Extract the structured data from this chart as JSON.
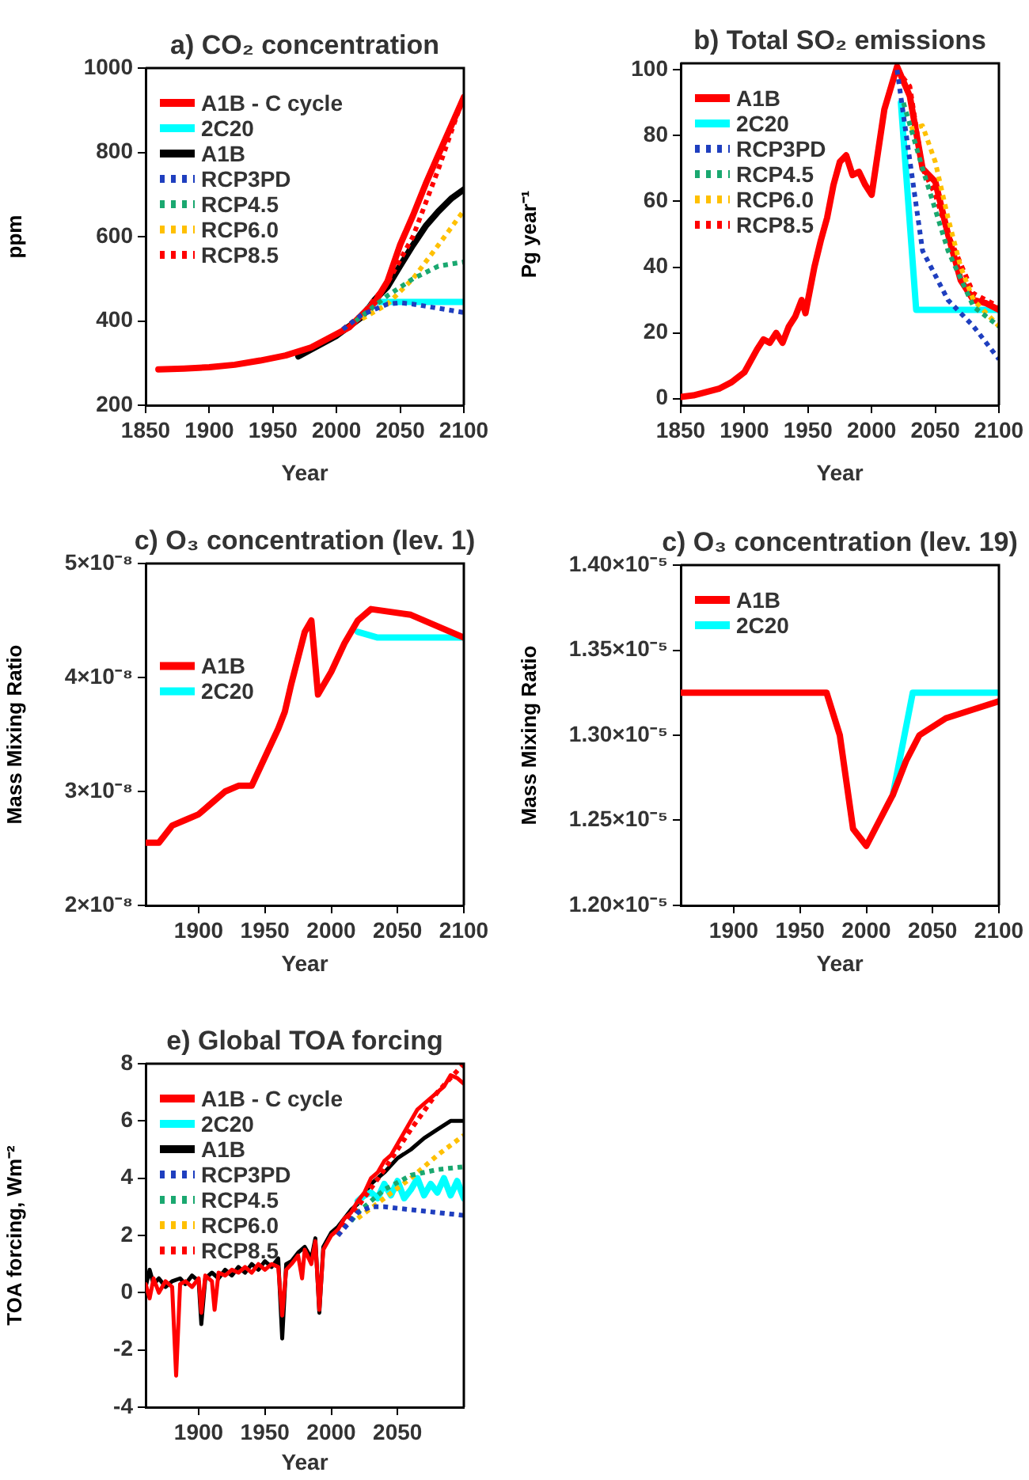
{
  "chart_data": [
    {
      "type": "line",
      "title": "a) CO₂ concentration",
      "xlabel": "Year",
      "ylabel": "ppm",
      "xlim": [
        1850,
        2100
      ],
      "xticks": [
        1850,
        1900,
        1950,
        2000,
        2050,
        2100
      ],
      "ylim": [
        200,
        1000
      ],
      "yticks": [
        200,
        400,
        600,
        800,
        1000
      ],
      "grid": false,
      "legend": "top left",
      "marker": "none",
      "series": [
        {
          "name": "A1B - C cycle",
          "color": "#ff0000",
          "line_style": "solid",
          "x": [
            1860,
            1880,
            1900,
            1920,
            1940,
            1960,
            1980,
            2000,
            2010,
            2020,
            2030,
            2040,
            2050,
            2060,
            2070,
            2080,
            2090,
            2100
          ],
          "values": [
            285,
            287,
            290,
            296,
            306,
            318,
            337,
            369,
            385,
            415,
            444,
            494,
            581,
            650,
            725,
            794,
            862,
            931
          ]
        },
        {
          "name": "2C20",
          "color": "#00ffff",
          "line_style": "solid",
          "x": [
            2020,
            2030,
            2040,
            2060,
            2080,
            2100
          ],
          "values": [
            415,
            445,
            445,
            445,
            445,
            445
          ]
        },
        {
          "name": "A1B",
          "color": "#000000",
          "line_style": "solid",
          "x": [
            1970,
            2000,
            2020,
            2030,
            2040,
            2050,
            2060,
            2070,
            2080,
            2090,
            2100
          ],
          "values": [
            316,
            365,
            410,
            450,
            481,
            531,
            580,
            625,
            660,
            690,
            712
          ]
        },
        {
          "name": "RCP3PD",
          "color": "#1f3fbf",
          "line_style": "dotted",
          "x": [
            2005,
            2020,
            2040,
            2050,
            2060,
            2080,
            2100
          ],
          "values": [
            380,
            415,
            440,
            443,
            440,
            430,
            420
          ]
        },
        {
          "name": "RCP4.5",
          "color": "#1aa870",
          "line_style": "dotted",
          "x": [
            2015,
            2020,
            2040,
            2060,
            2080,
            2100
          ],
          "values": [
            400,
            412,
            460,
            500,
            530,
            540
          ]
        },
        {
          "name": "RCP6.0",
          "color": "#ffc000",
          "line_style": "dotted",
          "x": [
            2020,
            2040,
            2060,
            2080,
            2100
          ],
          "values": [
            405,
            440,
            500,
            580,
            662
          ]
        },
        {
          "name": "RCP8.5",
          "color": "#ff0000",
          "line_style": "dotted",
          "x": [
            2005,
            2020,
            2040,
            2060,
            2080,
            2100
          ],
          "values": [
            380,
            415,
            490,
            600,
            760,
            935
          ]
        }
      ]
    },
    {
      "type": "line",
      "title": "b) Total SO₂ emissions",
      "xlabel": "Year",
      "ylabel": "Pg year⁻¹",
      "xlim": [
        1850,
        2100
      ],
      "xticks": [
        1850,
        1900,
        1950,
        2000,
        2050,
        2100
      ],
      "ylim": [
        -2,
        102
      ],
      "yticks": [
        0,
        20,
        40,
        60,
        80,
        100
      ],
      "grid": false,
      "legend": "top left",
      "marker": "none",
      "series": [
        {
          "name": "A1B",
          "color": "#ff0000",
          "line_style": "solid",
          "x": [
            1850,
            1860,
            1870,
            1880,
            1890,
            1900,
            1910,
            1915,
            1920,
            1925,
            1930,
            1935,
            1940,
            1945,
            1948,
            1955,
            1960,
            1965,
            1970,
            1975,
            1980,
            1985,
            1990,
            1995,
            2000,
            2005,
            2010,
            2020,
            2030,
            2040,
            2050,
            2060,
            2070,
            2080,
            2090,
            2100
          ],
          "values": [
            0.5,
            1,
            2,
            3,
            5,
            8,
            15,
            18,
            17,
            20,
            17,
            22,
            25,
            30,
            26,
            40,
            48,
            55,
            65,
            72,
            74,
            68,
            69,
            65,
            62,
            75,
            88,
            101,
            92,
            70,
            66,
            50,
            36,
            30,
            29,
            27
          ]
        },
        {
          "name": "2C20",
          "color": "#00ffff",
          "line_style": "solid",
          "x": [
            2023,
            2035,
            2100
          ],
          "values": [
            90,
            27,
            27
          ]
        },
        {
          "name": "RCP3PD",
          "color": "#1f3fbf",
          "line_style": "dotted",
          "x": [
            2020,
            2040,
            2060,
            2080,
            2100
          ],
          "values": [
            100,
            45,
            30,
            22,
            12
          ]
        },
        {
          "name": "RCP4.5",
          "color": "#1aa870",
          "line_style": "dotted",
          "x": [
            2025,
            2040,
            2060,
            2080,
            2100
          ],
          "values": [
            90,
            70,
            45,
            28,
            22
          ]
        },
        {
          "name": "RCP6.0",
          "color": "#ffc000",
          "line_style": "dotted",
          "x": [
            2030,
            2040,
            2050,
            2060,
            2070,
            2080,
            2100
          ],
          "values": [
            82,
            83,
            72,
            55,
            40,
            30,
            22
          ]
        },
        {
          "name": "RCP8.5",
          "color": "#ff0000",
          "line_style": "dotted",
          "x": [
            2020,
            2030,
            2040,
            2050,
            2060,
            2080,
            2100
          ],
          "values": [
            100,
            95,
            70,
            62,
            50,
            32,
            28
          ]
        }
      ]
    },
    {
      "type": "line",
      "title": "c) O₃ concentration (lev. 1)",
      "xlabel": "Year",
      "ylabel": "Mass Mixing Ratio",
      "xlim": [
        1860,
        2100
      ],
      "xticks": [
        1900,
        1950,
        2000,
        2050,
        2100
      ],
      "ylim": [
        2e-08,
        5e-08
      ],
      "yticks": [
        {
          "value": 2e-08,
          "label": "2×10⁻⁸"
        },
        {
          "value": 3e-08,
          "label": "3×10⁻⁸"
        },
        {
          "value": 4e-08,
          "label": "4×10⁻⁸"
        },
        {
          "value": 5e-08,
          "label": "5×10⁻⁸"
        }
      ],
      "grid": false,
      "legend": "left",
      "marker": "none",
      "series": [
        {
          "name": "A1B",
          "color": "#ff0000",
          "line_style": "solid",
          "x": [
            1860,
            1870,
            1880,
            1890,
            1900,
            1910,
            1920,
            1930,
            1940,
            1950,
            1960,
            1965,
            1970,
            1980,
            1985,
            1990,
            2000,
            2010,
            2020,
            2030,
            2060,
            2100
          ],
          "values": [
            2.55e-08,
            2.55e-08,
            2.7e-08,
            2.75e-08,
            2.8e-08,
            2.9e-08,
            3e-08,
            3.05e-08,
            3.05e-08,
            3.3e-08,
            3.55e-08,
            3.7e-08,
            3.95e-08,
            4.4e-08,
            4.5e-08,
            3.85e-08,
            4.05e-08,
            4.3e-08,
            4.5e-08,
            4.6e-08,
            4.55e-08,
            4.35e-08
          ]
        },
        {
          "name": "2C20",
          "color": "#00ffff",
          "line_style": "solid",
          "x": [
            2020,
            2035,
            2100
          ],
          "values": [
            4.4e-08,
            4.35e-08,
            4.35e-08
          ]
        }
      ]
    },
    {
      "type": "line",
      "title": "c) O₃ concentration (lev. 19)",
      "xlabel": "Year",
      "ylabel": "Mass Mixing Ratio",
      "xlim": [
        1860,
        2100
      ],
      "xticks": [
        1900,
        1950,
        2000,
        2050,
        2100
      ],
      "ylim": [
        1.2e-05,
        1.4e-05
      ],
      "yticks": [
        {
          "value": 1.2e-05,
          "label": "1.20×10⁻⁵"
        },
        {
          "value": 1.25e-05,
          "label": "1.25×10⁻⁵"
        },
        {
          "value": 1.3e-05,
          "label": "1.30×10⁻⁵"
        },
        {
          "value": 1.35e-05,
          "label": "1.35×10⁻⁵"
        },
        {
          "value": 1.4e-05,
          "label": "1.40×10⁻⁵"
        }
      ],
      "grid": false,
      "legend": "top left",
      "marker": "none",
      "series": [
        {
          "name": "A1B",
          "color": "#ff0000",
          "line_style": "solid",
          "x": [
            1860,
            1970,
            1980,
            1990,
            2000,
            2010,
            2020,
            2030,
            2040,
            2050,
            2060,
            2080,
            2100
          ],
          "values": [
            1.325e-05,
            1.325e-05,
            1.3e-05,
            1.245e-05,
            1.235e-05,
            1.25e-05,
            1.265e-05,
            1.285e-05,
            1.3e-05,
            1.305e-05,
            1.31e-05,
            1.315e-05,
            1.32e-05
          ]
        },
        {
          "name": "2C20",
          "color": "#00ffff",
          "line_style": "solid",
          "x": [
            2020,
            2035,
            2100
          ],
          "values": [
            1.265e-05,
            1.325e-05,
            1.325e-05
          ]
        }
      ]
    },
    {
      "type": "line",
      "title": "e) Global TOA forcing",
      "xlabel": "Year",
      "ylabel": "TOA forcing, Wm⁻²",
      "xlim": [
        1860,
        2100
      ],
      "xticks": [
        1900,
        1950,
        2000,
        2050
      ],
      "ylim": [
        -4,
        8
      ],
      "yticks": [
        -4,
        -2,
        0,
        2,
        4,
        6,
        8
      ],
      "grid": false,
      "legend": "top left",
      "marker": "none",
      "series": [
        {
          "name": "A1B - C cycle",
          "color": "#ff0000",
          "line_style": "solid",
          "x": [
            1860,
            1863,
            1866,
            1870,
            1875,
            1880,
            1883,
            1886,
            1890,
            1895,
            1900,
            1902,
            1905,
            1910,
            1912,
            1915,
            1920,
            1925,
            1930,
            1935,
            1940,
            1945,
            1950,
            1955,
            1960,
            1963,
            1966,
            1970,
            1975,
            1978,
            1980,
            1985,
            1988,
            1991,
            1994,
            2000,
            2005,
            2010,
            2015,
            2020,
            2025,
            2030,
            2035,
            2040,
            2045,
            2050,
            2055,
            2060,
            2065,
            2070,
            2075,
            2080,
            2085,
            2090,
            2095,
            2100
          ],
          "values": [
            0.3,
            -0.2,
            0.5,
            0,
            0.4,
            0.2,
            -2.9,
            0.3,
            0.4,
            0.2,
            0.5,
            -0.7,
            0.6,
            0.4,
            -0.6,
            0.7,
            0.6,
            0.8,
            0.7,
            0.9,
            0.7,
            1.0,
            0.8,
            1.0,
            0.9,
            -0.8,
            0.8,
            1.0,
            1.3,
            0.5,
            1.5,
            1.0,
            1.8,
            -0.6,
            1.5,
            2.0,
            2.2,
            2.6,
            2.8,
            3.2,
            3.5,
            4.0,
            4.2,
            4.6,
            4.8,
            5.2,
            5.6,
            6.0,
            6.4,
            6.6,
            6.8,
            7.0,
            7.2,
            7.6,
            7.5,
            7.3
          ]
        },
        {
          "name": "2C20",
          "color": "#00ffff",
          "line_style": "solid",
          "x": [
            2020,
            2025,
            2030,
            2035,
            2040,
            2045,
            2050,
            2055,
            2060,
            2065,
            2070,
            2075,
            2080,
            2085,
            2090,
            2095,
            2100
          ],
          "values": [
            3.2,
            3.4,
            3.5,
            3.3,
            3.8,
            3.4,
            3.9,
            3.3,
            3.6,
            4.0,
            3.4,
            3.8,
            3.5,
            4.0,
            3.4,
            3.9,
            3.3
          ]
        },
        {
          "name": "A1B",
          "color": "#000000",
          "line_style": "solid",
          "x": [
            1860,
            1863,
            1866,
            1870,
            1875,
            1880,
            1886,
            1890,
            1895,
            1900,
            1902,
            1905,
            1910,
            1915,
            1920,
            1925,
            1930,
            1935,
            1940,
            1945,
            1950,
            1955,
            1960,
            1963,
            1966,
            1970,
            1975,
            1980,
            1985,
            1988,
            1991,
            1994,
            2000,
            2005,
            2010,
            2015,
            2020,
            2030,
            2040,
            2050,
            2060,
            2070,
            2080,
            2090,
            2100
          ],
          "values": [
            0.2,
            0.8,
            0.3,
            0.5,
            0.2,
            0.4,
            0.5,
            0.3,
            0.6,
            0.4,
            -1.1,
            0.5,
            0.7,
            0.5,
            0.8,
            0.6,
            0.9,
            0.7,
            1.0,
            0.8,
            1.1,
            0.9,
            1.2,
            -1.6,
            1.0,
            1.1,
            1.4,
            1.6,
            1.2,
            1.9,
            -0.7,
            1.6,
            2.1,
            2.3,
            2.6,
            2.9,
            3.1,
            3.8,
            4.2,
            4.7,
            5.0,
            5.4,
            5.7,
            6.0,
            6.0
          ]
        },
        {
          "name": "RCP3PD",
          "color": "#1f3fbf",
          "line_style": "dotted",
          "x": [
            2005,
            2020,
            2030,
            2040,
            2060,
            2080,
            2100
          ],
          "values": [
            2.0,
            2.8,
            3.0,
            3.0,
            2.9,
            2.8,
            2.7
          ]
        },
        {
          "name": "RCP4.5",
          "color": "#1aa870",
          "line_style": "dotted",
          "x": [
            2015,
            2020,
            2040,
            2060,
            2080,
            2100
          ],
          "values": [
            2.5,
            2.8,
            3.6,
            4.1,
            4.3,
            4.4
          ]
        },
        {
          "name": "RCP6.0",
          "color": "#ffc000",
          "line_style": "dotted",
          "x": [
            2020,
            2040,
            2060,
            2080,
            2100
          ],
          "values": [
            2.6,
            3.3,
            4.0,
            4.8,
            5.5
          ]
        },
        {
          "name": "RCP8.5",
          "color": "#ff0000",
          "line_style": "dotted",
          "x": [
            2005,
            2020,
            2040,
            2060,
            2080,
            2100
          ],
          "values": [
            2.0,
            3.0,
            4.3,
            5.7,
            7.0,
            8.0
          ]
        }
      ]
    }
  ]
}
